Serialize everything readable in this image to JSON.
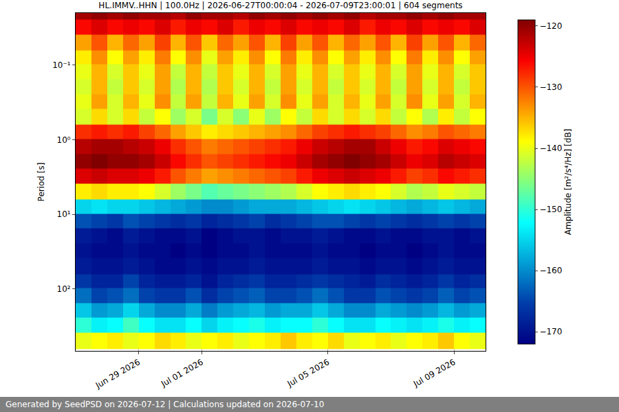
{
  "chart_data": {
    "type": "heatmap",
    "title": "HL.IMMV..HHN | 100.0Hz | 2026-06-27T00:00:04 - 2026-07-09T23:00:01 | 604 segments",
    "y_label": "Period [s]",
    "colorbar_label": "Amplitude [m²/s⁴/Hz] [dB]",
    "footer": "Generated by SeedPSD on 2026-07-12 | Calculations updated on 2026-07-10",
    "log": "y",
    "grid": true,
    "color": "Jet",
    "xlim": [
      "2026-06-27 00:00",
      "2026-07-10 00:00"
    ],
    "xticks": [
      {
        "value": "2026-06-29",
        "label": "Jun 29 2026"
      },
      {
        "value": "2026-07-01",
        "label": "Jul 01 2026"
      },
      {
        "value": "2026-07-05",
        "label": "Jul 05 2026"
      },
      {
        "value": "2026-07-09",
        "label": "Jul 09 2026"
      }
    ],
    "ylim": [
      680,
      0.02
    ],
    "yticks": [
      {
        "value": 0.1,
        "label": "10⁻¹"
      },
      {
        "value": 1,
        "label": "10⁰"
      },
      {
        "value": 10,
        "label": "10¹"
      },
      {
        "value": 100,
        "label": "10²"
      }
    ],
    "colorbar_range": [
      -172,
      -119
    ],
    "colorbar_ticks": [
      -170,
      -160,
      -150,
      -140,
      -130,
      -120
    ],
    "x": [
      "2026-06-27 06:00",
      "2026-06-27 18:00",
      "2026-06-28 06:00",
      "2026-06-28 18:00",
      "2026-06-29 06:00",
      "2026-06-29 18:00",
      "2026-06-30 06:00",
      "2026-06-30 18:00",
      "2026-07-01 06:00",
      "2026-07-01 18:00",
      "2026-07-02 06:00",
      "2026-07-02 18:00",
      "2026-07-03 06:00",
      "2026-07-03 18:00",
      "2026-07-04 06:00",
      "2026-07-04 18:00",
      "2026-07-05 06:00",
      "2026-07-05 18:00",
      "2026-07-06 06:00",
      "2026-07-06 18:00",
      "2026-07-07 06:00",
      "2026-07-07 18:00",
      "2026-07-08 06:00",
      "2026-07-08 18:00",
      "2026-07-09 06:00",
      "2026-07-09 18:00"
    ],
    "periods": [
      0.02,
      0.03,
      0.05,
      0.08,
      0.12,
      0.2,
      0.3,
      0.5,
      0.8,
      1.2,
      2,
      3,
      5,
      8,
      12,
      20,
      30,
      50,
      80,
      120,
      200,
      300,
      500
    ],
    "cells": [
      [
        -121,
        -120,
        -121,
        -120,
        -121,
        -121,
        -122,
        -120,
        -121,
        -121,
        -122,
        -120,
        -121,
        -120,
        -121,
        -120,
        -121,
        -120,
        -122,
        -121,
        -121,
        -120,
        -121,
        -120,
        -121,
        -121
      ],
      [
        -126,
        -124,
        -126,
        -125,
        -126,
        -124,
        -127,
        -125,
        -126,
        -124,
        -127,
        -125,
        -126,
        -124,
        -126,
        -125,
        -126,
        -124,
        -127,
        -125,
        -126,
        -124,
        -126,
        -125,
        -126,
        -124
      ],
      [
        -134,
        -130,
        -135,
        -131,
        -134,
        -129,
        -135,
        -130,
        -136,
        -131,
        -134,
        -130,
        -135,
        -129,
        -134,
        -130,
        -135,
        -131,
        -134,
        -130,
        -135,
        -129,
        -134,
        -130,
        -135,
        -131
      ],
      [
        -138,
        -133,
        -139,
        -134,
        -138,
        -132,
        -139,
        -133,
        -140,
        -134,
        -138,
        -133,
        -139,
        -132,
        -138,
        -133,
        -139,
        -134,
        -138,
        -133,
        -139,
        -132,
        -138,
        -133,
        -139,
        -134
      ],
      [
        -140,
        -135,
        -141,
        -136,
        -140,
        -134,
        -142,
        -135,
        -142,
        -136,
        -140,
        -135,
        -141,
        -134,
        -140,
        -135,
        -141,
        -136,
        -140,
        -135,
        -141,
        -134,
        -140,
        -135,
        -141,
        -136
      ],
      [
        -141,
        -135,
        -142,
        -136,
        -141,
        -134,
        -143,
        -135,
        -143,
        -136,
        -141,
        -135,
        -142,
        -134,
        -141,
        -135,
        -142,
        -136,
        -141,
        -135,
        -142,
        -134,
        -141,
        -135,
        -142,
        -136
      ],
      [
        -140,
        -134,
        -141,
        -135,
        -140,
        -133,
        -142,
        -134,
        -142,
        -135,
        -140,
        -134,
        -141,
        -133,
        -140,
        -134,
        -141,
        -135,
        -140,
        -134,
        -141,
        -133,
        -140,
        -134,
        -141,
        -135
      ],
      [
        -141,
        -137,
        -141,
        -137,
        -142,
        -139,
        -144,
        -141,
        -146,
        -141,
        -145,
        -140,
        -144,
        -139,
        -142,
        -137,
        -141,
        -137,
        -141,
        -137,
        -142,
        -139,
        -143,
        -138,
        -142,
        -139
      ],
      [
        -128,
        -127,
        -128,
        -127,
        -129,
        -131,
        -134,
        -136,
        -138,
        -137,
        -136,
        -135,
        -134,
        -133,
        -131,
        -129,
        -128,
        -127,
        -128,
        -129,
        -131,
        -133,
        -132,
        -130,
        -131,
        -132
      ],
      [
        -122,
        -121,
        -121,
        -122,
        -123,
        -125,
        -128,
        -130,
        -132,
        -131,
        -130,
        -129,
        -128,
        -127,
        -125,
        -123,
        -122,
        -121,
        -121,
        -123,
        -125,
        -127,
        -126,
        -124,
        -125,
        -126
      ],
      [
        -120,
        -119,
        -120,
        -120,
        -121,
        -123,
        -126,
        -128,
        -130,
        -129,
        -128,
        -127,
        -126,
        -125,
        -123,
        -121,
        -120,
        -119,
        -120,
        -121,
        -123,
        -125,
        -124,
        -122,
        -123,
        -124
      ],
      [
        -124,
        -123,
        -124,
        -124,
        -125,
        -127,
        -130,
        -132,
        -134,
        -133,
        -132,
        -131,
        -130,
        -129,
        -127,
        -125,
        -124,
        -123,
        -124,
        -125,
        -127,
        -129,
        -128,
        -126,
        -127,
        -128
      ],
      [
        -138,
        -137,
        -138,
        -138,
        -139,
        -141,
        -144,
        -146,
        -148,
        -147,
        -146,
        -145,
        -144,
        -143,
        -141,
        -139,
        -138,
        -137,
        -138,
        -139,
        -141,
        -143,
        -142,
        -140,
        -141,
        -142
      ],
      [
        -155,
        -154,
        -155,
        -155,
        -156,
        -157,
        -158,
        -159,
        -160,
        -160,
        -159,
        -158,
        -158,
        -158,
        -157,
        -156,
        -155,
        -154,
        -155,
        -156,
        -157,
        -158,
        -157,
        -156,
        -157,
        -158
      ],
      [
        -164,
        -165,
        -166,
        -164,
        -165,
        -166,
        -167,
        -166,
        -168,
        -167,
        -166,
        -165,
        -167,
        -166,
        -165,
        -164,
        -164,
        -165,
        -166,
        -165,
        -166,
        -167,
        -166,
        -165,
        -166,
        -165
      ],
      [
        -169,
        -170,
        -171,
        -169,
        -170,
        -171,
        -171,
        -170,
        -172,
        -171,
        -170,
        -170,
        -171,
        -170,
        -170,
        -169,
        -170,
        -171,
        -171,
        -170,
        -171,
        -171,
        -170,
        -170,
        -171,
        -170
      ],
      [
        -170,
        -171,
        -171,
        -170,
        -171,
        -171,
        -172,
        -171,
        -172,
        -171,
        -171,
        -170,
        -171,
        -171,
        -171,
        -170,
        -171,
        -171,
        -172,
        -171,
        -171,
        -172,
        -171,
        -170,
        -171,
        -171
      ],
      [
        -169,
        -170,
        -170,
        -169,
        -170,
        -171,
        -171,
        -170,
        -171,
        -170,
        -170,
        -169,
        -170,
        -170,
        -170,
        -169,
        -170,
        -170,
        -171,
        -170,
        -170,
        -171,
        -170,
        -169,
        -170,
        -170
      ],
      [
        -166,
        -168,
        -168,
        -165,
        -168,
        -169,
        -169,
        -168,
        -170,
        -168,
        -167,
        -166,
        -168,
        -168,
        -167,
        -166,
        -167,
        -168,
        -169,
        -167,
        -168,
        -169,
        -168,
        -166,
        -168,
        -167
      ],
      [
        -162,
        -165,
        -164,
        -162,
        -165,
        -166,
        -166,
        -164,
        -167,
        -165,
        -164,
        -163,
        -165,
        -165,
        -164,
        -162,
        -164,
        -166,
        -166,
        -164,
        -165,
        -166,
        -165,
        -163,
        -165,
        -164
      ],
      [
        -156,
        -159,
        -158,
        -155,
        -158,
        -160,
        -160,
        -158,
        -161,
        -159,
        -158,
        -157,
        -159,
        -158,
        -158,
        -156,
        -158,
        -160,
        -160,
        -158,
        -159,
        -160,
        -159,
        -157,
        -159,
        -158
      ],
      [
        -150,
        -153,
        -152,
        -149,
        -152,
        -154,
        -154,
        -152,
        -155,
        -153,
        -152,
        -151,
        -153,
        -152,
        -152,
        -150,
        -152,
        -154,
        -154,
        -152,
        -153,
        -154,
        -153,
        -151,
        -153,
        -152
      ],
      [
        -140,
        -139,
        -138,
        -140,
        -139,
        -137,
        -138,
        -140,
        -139,
        -138,
        -140,
        -139,
        -138,
        -136,
        -138,
        -139,
        -137,
        -140,
        -139,
        -138,
        -140,
        -139,
        -138,
        -136,
        -139,
        -140
      ]
    ]
  }
}
